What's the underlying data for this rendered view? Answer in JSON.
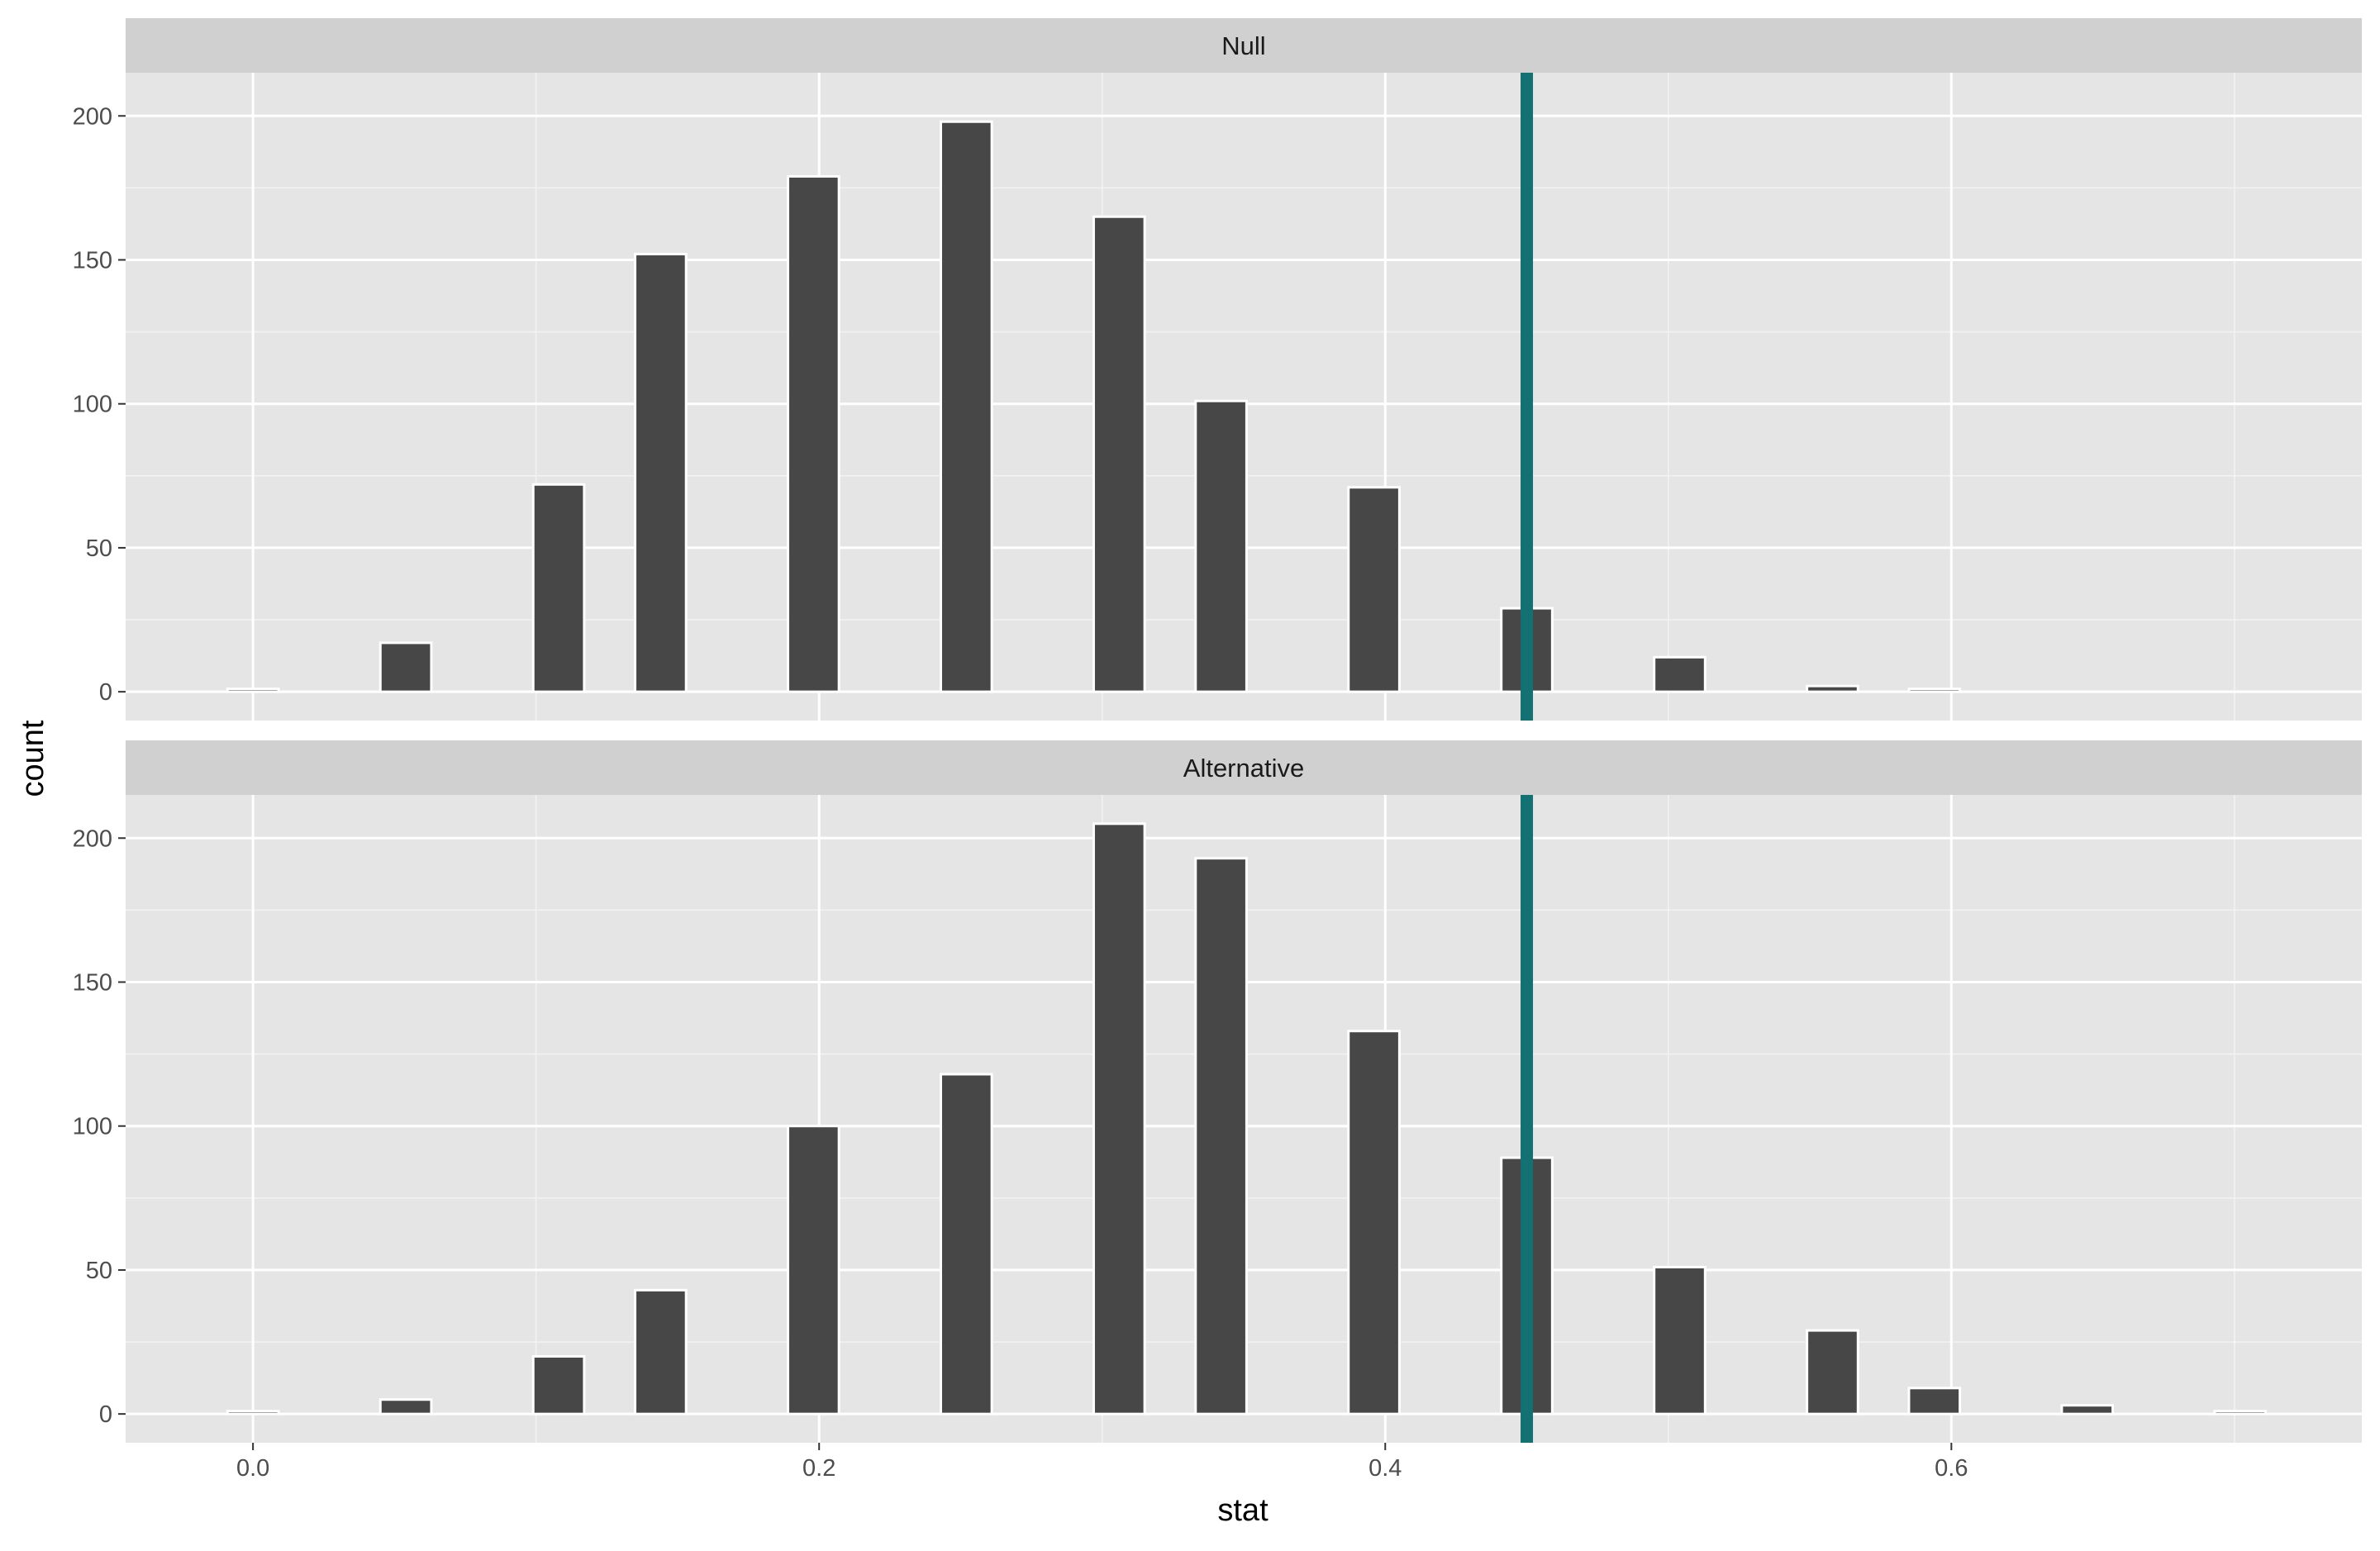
{
  "chart_data": {
    "type": "bar",
    "xlabel": "stat",
    "ylabel": "count",
    "x_ticks": [
      0.0,
      0.2,
      0.4,
      0.6
    ],
    "x_tick_labels": [
      "0.0",
      "0.2",
      "0.4",
      "0.6"
    ],
    "xlim": [
      -0.045,
      0.745
    ],
    "y_ticks": [
      0,
      50,
      100,
      150,
      200
    ],
    "y_tick_labels": [
      "0",
      "50",
      "100",
      "150",
      "200"
    ],
    "ylim": [
      -10,
      215
    ],
    "grid": true,
    "bin_width": 0.018,
    "observed_stat": 0.45,
    "observed_line_color": "#137073",
    "bar_fill": "#474747",
    "bar_outline": "#ffffff",
    "panel_background": "#e5e5e5",
    "strip_background": "#d0d0d0",
    "panels": [
      {
        "label": "Null",
        "bars": [
          {
            "x": 0.0,
            "count": 1
          },
          {
            "x": 0.054,
            "count": 17
          },
          {
            "x": 0.108,
            "count": 72
          },
          {
            "x": 0.144,
            "count": 152
          },
          {
            "x": 0.198,
            "count": 179
          },
          {
            "x": 0.252,
            "count": 198
          },
          {
            "x": 0.306,
            "count": 165
          },
          {
            "x": 0.342,
            "count": 101
          },
          {
            "x": 0.396,
            "count": 71
          },
          {
            "x": 0.45,
            "count": 29
          },
          {
            "x": 0.504,
            "count": 12
          },
          {
            "x": 0.558,
            "count": 2
          },
          {
            "x": 0.594,
            "count": 1
          }
        ]
      },
      {
        "label": "Alternative",
        "bars": [
          {
            "x": 0.0,
            "count": 1
          },
          {
            "x": 0.054,
            "count": 5
          },
          {
            "x": 0.108,
            "count": 20
          },
          {
            "x": 0.144,
            "count": 43
          },
          {
            "x": 0.198,
            "count": 100
          },
          {
            "x": 0.252,
            "count": 118
          },
          {
            "x": 0.306,
            "count": 205
          },
          {
            "x": 0.342,
            "count": 193
          },
          {
            "x": 0.396,
            "count": 133
          },
          {
            "x": 0.45,
            "count": 89
          },
          {
            "x": 0.504,
            "count": 51
          },
          {
            "x": 0.558,
            "count": 29
          },
          {
            "x": 0.594,
            "count": 9
          },
          {
            "x": 0.648,
            "count": 3
          },
          {
            "x": 0.702,
            "count": 1
          }
        ]
      }
    ]
  }
}
